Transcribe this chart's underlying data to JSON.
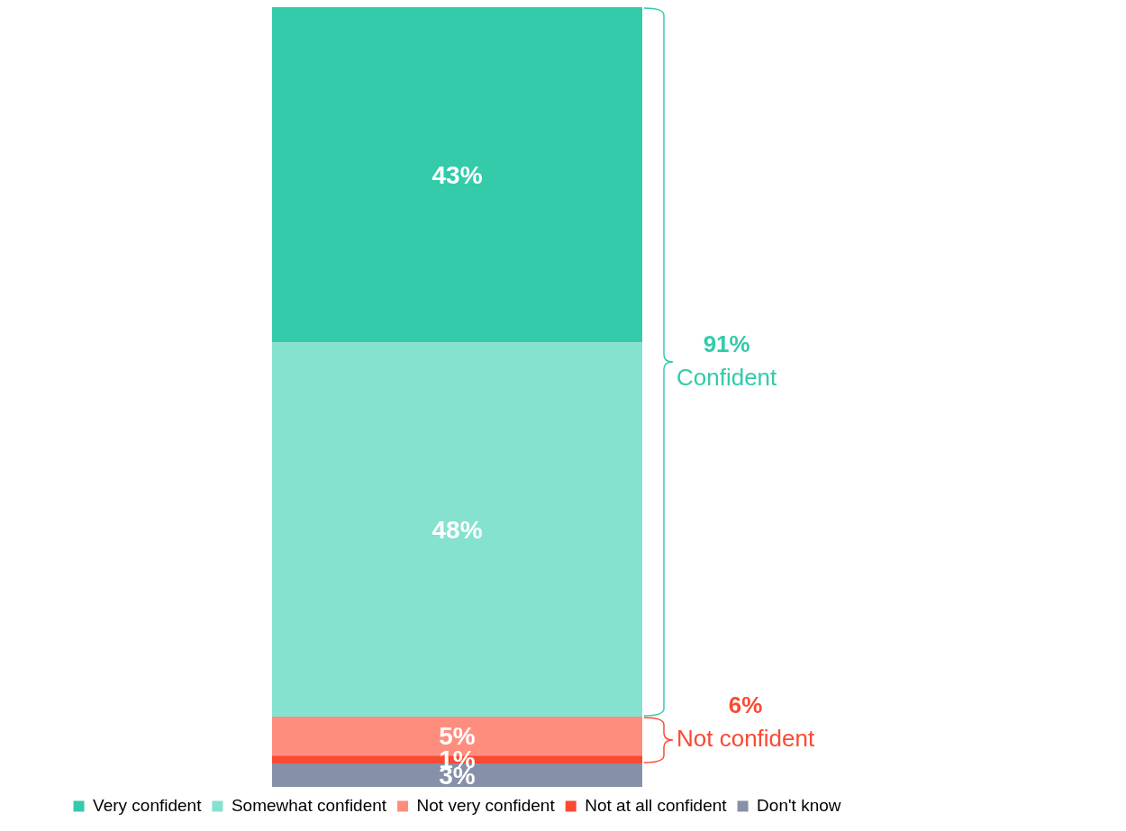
{
  "chart_data": {
    "type": "bar",
    "stacked": true,
    "categories": [
      null
    ],
    "series": [
      {
        "name": "Don't know",
        "color": "#8690a8",
        "values": [
          3
        ],
        "value_labels": [
          "3%"
        ]
      },
      {
        "name": "Not at all confident",
        "color": "#fa4a33",
        "values": [
          1
        ],
        "value_labels": [
          "1%"
        ]
      },
      {
        "name": "Not very confident",
        "color": "#ff8d7e",
        "values": [
          5
        ],
        "value_labels": [
          "5%"
        ]
      },
      {
        "name": "Somewhat confident",
        "color": "#85e2cf",
        "values": [
          48
        ],
        "value_labels": [
          "48%"
        ]
      },
      {
        "name": "Very confident",
        "color": "#33cbaa",
        "values": [
          43
        ],
        "value_labels": [
          "43%"
        ]
      }
    ],
    "ylim": [
      0,
      100
    ],
    "legend": "bottom",
    "annotations": [
      "91%",
      "Confident",
      "6%",
      "Not confident"
    ]
  }
}
